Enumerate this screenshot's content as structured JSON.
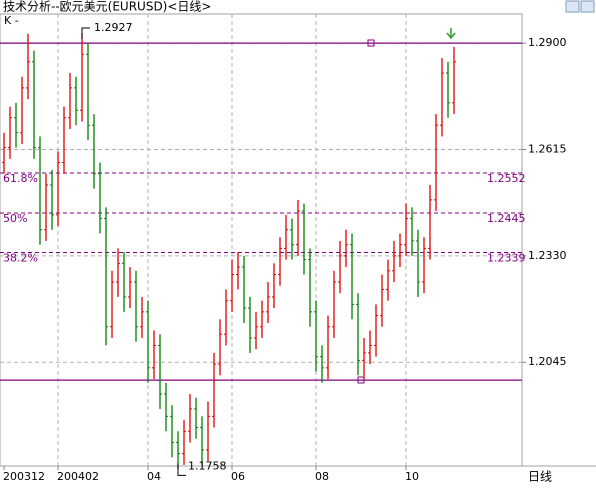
{
  "title": "技术分析--欧元美元(EURUSD)<日线>",
  "chart_data": {
    "type": "ohlc",
    "indicator_label": "K -",
    "period_label": "日线",
    "categories": [
      "200312",
      null,
      null,
      null,
      null,
      null,
      null,
      null,
      null,
      "200402",
      null,
      null,
      null,
      null,
      null,
      null,
      null,
      null,
      null,
      null,
      null,
      null,
      null,
      null,
      "04",
      null,
      null,
      null,
      null,
      null,
      null,
      null,
      null,
      null,
      null,
      null,
      null,
      null,
      "06",
      null,
      null,
      null,
      null,
      null,
      null,
      null,
      null,
      null,
      null,
      null,
      null,
      null,
      "08",
      null,
      null,
      null,
      null,
      null,
      null,
      null,
      null,
      null,
      null,
      null,
      null,
      null,
      null,
      "10",
      null,
      null,
      null,
      null,
      null,
      null,
      null,
      null
    ],
    "open": [
      1.258,
      1.262,
      1.27,
      1.266,
      1.278,
      1.285,
      1.262,
      1.24,
      1.252,
      1.244,
      1.258,
      1.27,
      1.278,
      1.272,
      1.287,
      1.268,
      1.255,
      1.243,
      1.214,
      1.226,
      1.231,
      1.222,
      1.226,
      1.214,
      1.218,
      1.203,
      1.209,
      1.196,
      1.19,
      1.183,
      1.18,
      1.186,
      1.192,
      1.187,
      1.181,
      1.19,
      1.204,
      1.212,
      1.221,
      1.228,
      1.23,
      1.219,
      1.211,
      1.214,
      1.218,
      1.222,
      1.228,
      1.235,
      1.24,
      1.236,
      1.245,
      1.232,
      1.218,
      1.206,
      1.203,
      1.214,
      1.226,
      1.233,
      1.236,
      1.22,
      1.205,
      1.207,
      1.209,
      1.217,
      1.224,
      1.229,
      1.233,
      1.236,
      1.243,
      1.237,
      1.226,
      1.235,
      1.248,
      1.268,
      1.282,
      1.274
    ],
    "high": [
      1.266,
      1.273,
      1.274,
      1.281,
      1.2925,
      1.288,
      1.265,
      1.255,
      1.256,
      1.261,
      1.273,
      1.282,
      1.281,
      1.2927,
      1.29,
      1.271,
      1.258,
      1.246,
      1.229,
      1.235,
      1.234,
      1.23,
      1.229,
      1.222,
      1.221,
      1.213,
      1.212,
      1.199,
      1.193,
      1.186,
      1.189,
      1.196,
      1.195,
      1.19,
      1.194,
      1.207,
      1.216,
      1.224,
      1.232,
      1.234,
      1.233,
      1.222,
      1.218,
      1.221,
      1.226,
      1.231,
      1.238,
      1.244,
      1.243,
      1.248,
      1.247,
      1.235,
      1.221,
      1.209,
      1.217,
      1.229,
      1.237,
      1.24,
      1.239,
      1.223,
      1.211,
      1.213,
      1.22,
      1.228,
      1.232,
      1.237,
      1.239,
      1.247,
      1.246,
      1.24,
      1.238,
      1.252,
      1.271,
      1.286,
      1.285,
      1.289
    ],
    "low": [
      1.255,
      1.259,
      1.262,
      1.263,
      1.275,
      1.259,
      1.236,
      1.237,
      1.24,
      1.241,
      1.255,
      1.267,
      1.268,
      1.269,
      1.264,
      1.251,
      1.239,
      1.209,
      1.211,
      1.222,
      1.218,
      1.219,
      1.21,
      1.211,
      1.199,
      1.2,
      1.192,
      1.186,
      1.179,
      1.1758,
      1.177,
      1.183,
      1.184,
      1.177,
      1.178,
      1.187,
      1.201,
      1.209,
      1.218,
      1.224,
      1.215,
      1.207,
      1.208,
      1.211,
      1.215,
      1.219,
      1.225,
      1.232,
      1.232,
      1.233,
      1.228,
      1.214,
      1.202,
      1.199,
      1.2,
      1.211,
      1.223,
      1.23,
      1.216,
      1.201,
      1.2,
      1.204,
      1.206,
      1.214,
      1.221,
      1.226,
      1.23,
      1.233,
      1.233,
      1.222,
      1.223,
      1.232,
      1.245,
      1.265,
      1.27,
      1.271
    ],
    "close": [
      1.262,
      1.27,
      1.266,
      1.278,
      1.285,
      1.262,
      1.24,
      1.252,
      1.244,
      1.258,
      1.27,
      1.278,
      1.272,
      1.287,
      1.268,
      1.255,
      1.243,
      1.214,
      1.226,
      1.231,
      1.222,
      1.226,
      1.214,
      1.218,
      1.203,
      1.209,
      1.196,
      1.19,
      1.183,
      1.18,
      1.186,
      1.192,
      1.187,
      1.181,
      1.19,
      1.204,
      1.212,
      1.221,
      1.228,
      1.23,
      1.219,
      1.211,
      1.214,
      1.218,
      1.222,
      1.228,
      1.235,
      1.24,
      1.236,
      1.245,
      1.232,
      1.218,
      1.206,
      1.203,
      1.214,
      1.226,
      1.233,
      1.236,
      1.22,
      1.205,
      1.207,
      1.209,
      1.217,
      1.224,
      1.229,
      1.233,
      1.236,
      1.243,
      1.237,
      1.226,
      1.235,
      1.248,
      1.268,
      1.282,
      1.274,
      1.285
    ],
    "up_color": "#e00000",
    "down_color": "#008000",
    "ylim": [
      1.1767,
      1.2978
    ],
    "yticks": [
      {
        "value": 1.29,
        "label": "1.2900"
      },
      {
        "value": 1.2615,
        "label": "1.2615"
      },
      {
        "value": 1.233,
        "label": "1.2330"
      },
      {
        "value": 1.2045,
        "label": "1.2045"
      }
    ],
    "grid": true,
    "peak": 1.2927,
    "trough": 1.1758,
    "fib_levels": [
      {
        "ratio": "61.8%",
        "value": 1.2552
      },
      {
        "ratio": "50%",
        "value": 1.2445
      },
      {
        "ratio": "38.2%",
        "value": 1.2339
      }
    ],
    "fib_color": "#800080",
    "hlines": [
      1.29,
      1.1997
    ]
  }
}
